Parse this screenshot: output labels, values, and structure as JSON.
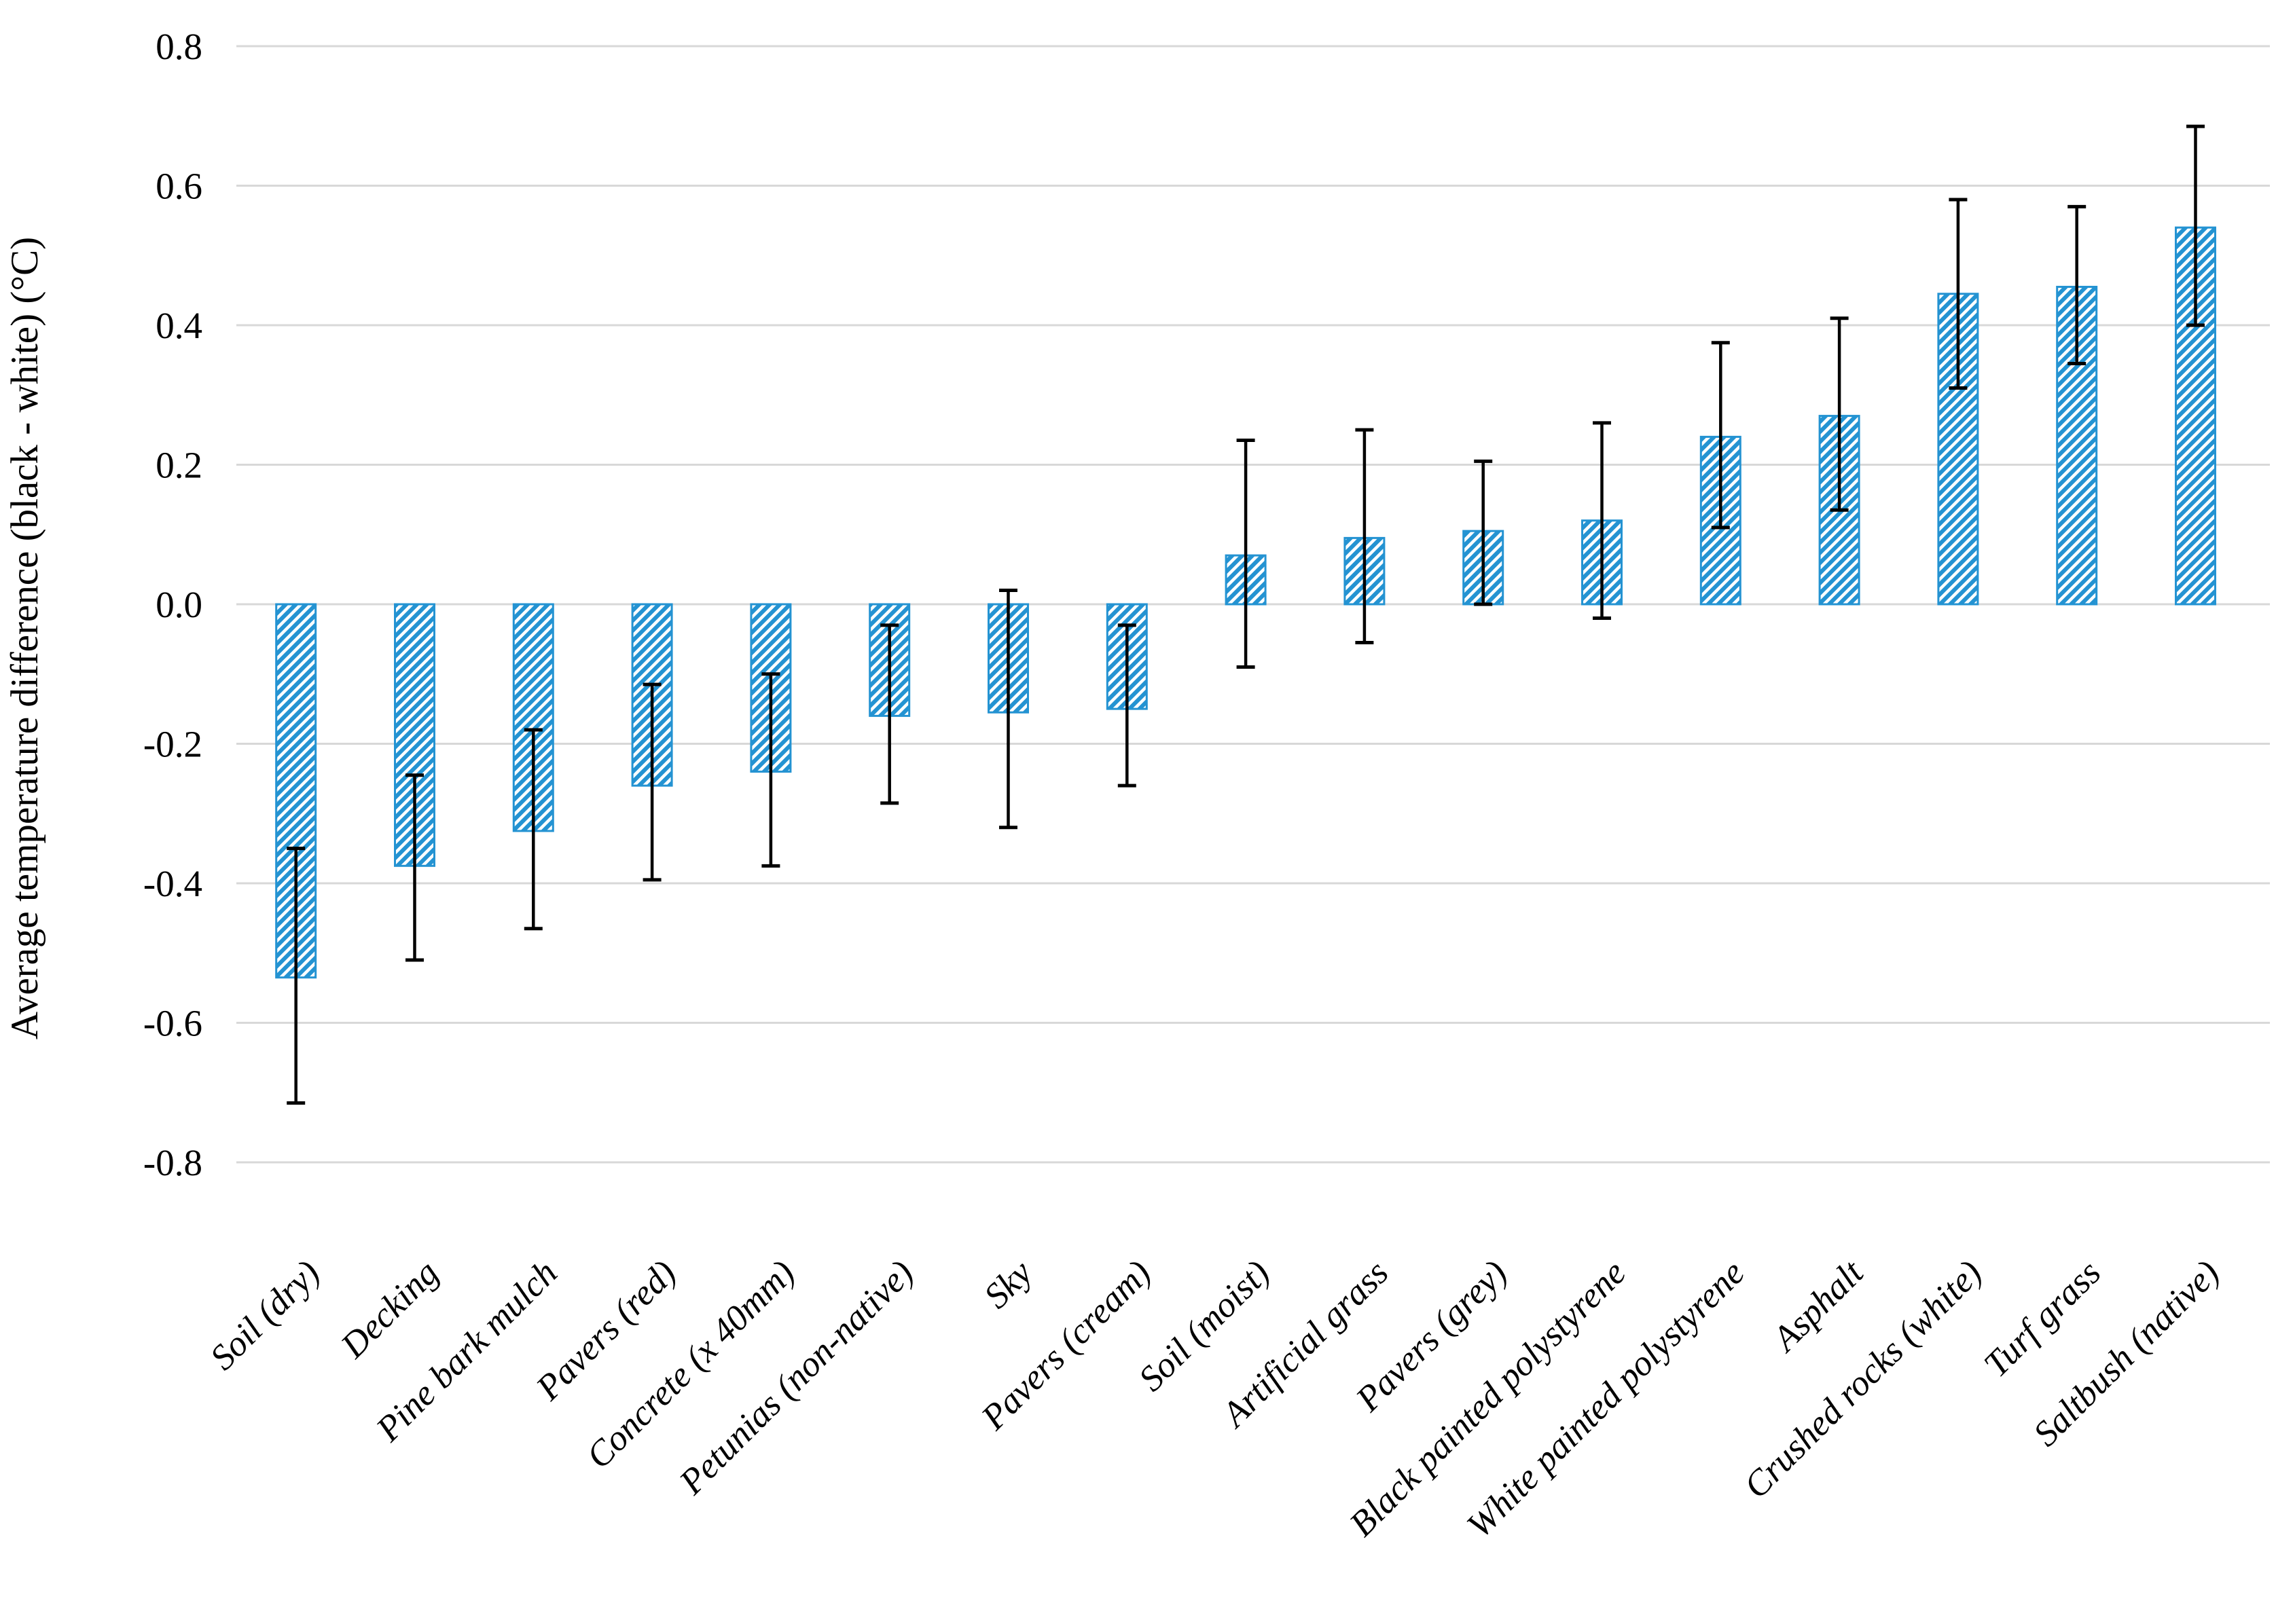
{
  "chart_data": {
    "type": "bar",
    "title": "",
    "xlabel": "",
    "ylabel": "Average temperature difference (black - white) (°C)",
    "ylim": [
      -0.8,
      0.8
    ],
    "ytick_step": 0.2,
    "ytick_labels": [
      "0.8",
      "0.6",
      "0.4",
      "0.2",
      "0.0",
      "-0.2",
      "-0.4",
      "-0.6",
      "-0.8"
    ],
    "ytick_values": [
      0.8,
      0.6,
      0.4,
      0.2,
      0.0,
      -0.2,
      -0.4,
      -0.6,
      -0.8
    ],
    "grid": true,
    "legend": "none",
    "bar_style": "diagonal-hatch",
    "bar_color": "#2493d2",
    "gridline_color": "#d8d8d8",
    "error_bar_color": "#000000",
    "categories": [
      "Soil (dry)",
      "Decking",
      "Pine bark mulch",
      "Pavers (red)",
      "Concrete (x 40mm)",
      "Petunias (non-native)",
      "Sky",
      "Pavers (cream)",
      "Soil (moist)",
      "Artificial grass",
      "Pavers (grey)",
      "Black painted polystyrene",
      "White painted polystyrene",
      "Asphalt",
      "Crushed rocks (white)",
      "Turf grass",
      "Saltbush (native)"
    ],
    "values": [
      -0.535,
      -0.375,
      -0.325,
      -0.26,
      -0.24,
      -0.16,
      -0.155,
      -0.15,
      0.07,
      0.095,
      0.105,
      0.12,
      0.24,
      0.27,
      0.445,
      0.455,
      0.54
    ],
    "error_high": [
      -0.35,
      -0.245,
      -0.18,
      -0.115,
      -0.1,
      -0.03,
      0.02,
      -0.03,
      0.235,
      0.25,
      0.205,
      0.26,
      0.375,
      0.41,
      0.58,
      0.57,
      0.685
    ],
    "error_low": [
      -0.715,
      -0.51,
      -0.465,
      -0.395,
      -0.375,
      -0.285,
      -0.32,
      -0.26,
      -0.09,
      -0.055,
      0.0,
      -0.02,
      0.11,
      0.135,
      0.31,
      0.345,
      0.4
    ]
  }
}
